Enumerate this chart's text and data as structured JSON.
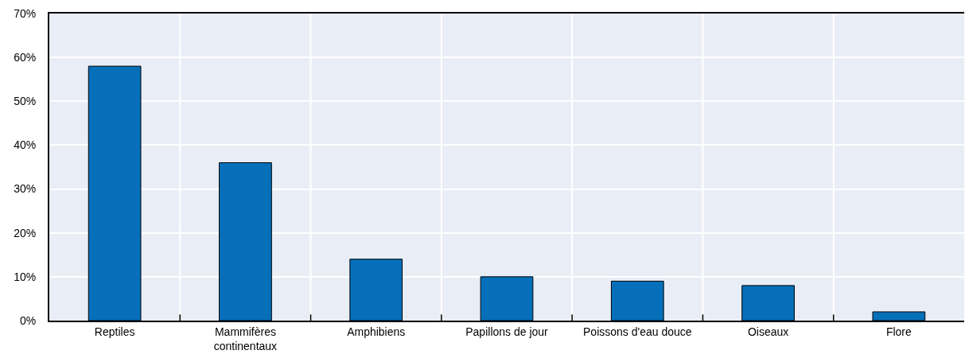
{
  "chart_data": {
    "type": "bar",
    "categories": [
      "Reptiles",
      "Mammifères continentaux",
      "Amphibiens",
      "Papillons de jour",
      "Poissons d'eau douce",
      "Oiseaux",
      "Flore"
    ],
    "values": [
      58,
      36,
      14,
      10,
      9,
      8,
      2
    ],
    "color": "#066fb9",
    "ylim": [
      0,
      70
    ],
    "yticks": [
      {
        "value": 0,
        "label": "0%"
      },
      {
        "value": 10,
        "label": "10%"
      },
      {
        "value": 20,
        "label": "20%"
      },
      {
        "value": 30,
        "label": "30%"
      },
      {
        "value": 40,
        "label": "40%"
      },
      {
        "value": 50,
        "label": "50%"
      },
      {
        "value": 60,
        "label": "60%"
      },
      {
        "value": 70,
        "label": "70%"
      }
    ],
    "grid": true
  }
}
